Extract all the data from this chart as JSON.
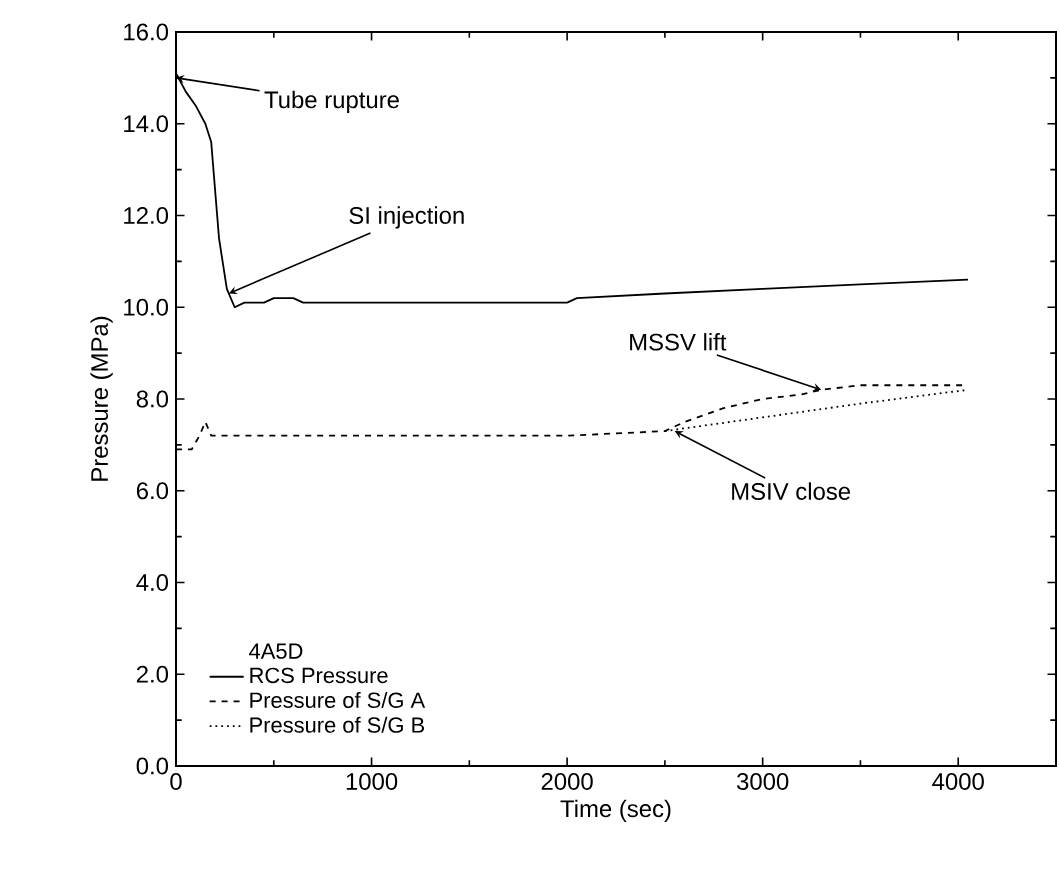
{
  "chart_data": {
    "type": "line",
    "xlabel": "Time (sec)",
    "ylabel": "Pressure (MPa)",
    "legend_title": "4A5D",
    "legend": "bottom left",
    "marker": "none",
    "xlim": [
      0,
      4500
    ],
    "xticks": [
      0,
      1000,
      2000,
      3000,
      4000
    ],
    "ylim": [
      0,
      16
    ],
    "yticks": [
      {
        "value": 0,
        "label": "0.0"
      },
      {
        "value": 2,
        "label": "2.0"
      },
      {
        "value": 4,
        "label": "4.0"
      },
      {
        "value": 6,
        "label": "6.0"
      },
      {
        "value": 8,
        "label": "8.0"
      },
      {
        "value": 10,
        "label": "10.0"
      },
      {
        "value": 12,
        "label": "12.0"
      },
      {
        "value": 14,
        "label": "14.0"
      },
      {
        "value": 16,
        "label": "16.0"
      }
    ],
    "series": [
      {
        "name": "RCS Pressure",
        "color": "#000000",
        "line_style": "solid",
        "x": [
          0,
          50,
          100,
          150,
          180,
          220,
          260,
          300,
          350,
          450,
          500,
          600,
          650,
          1000,
          1500,
          2000,
          2050,
          2500,
          3000,
          3500,
          4050
        ],
        "values": [
          15.1,
          14.7,
          14.4,
          14.0,
          13.6,
          11.5,
          10.4,
          10.0,
          10.1,
          10.1,
          10.2,
          10.2,
          10.1,
          10.1,
          10.1,
          10.1,
          10.2,
          10.3,
          10.4,
          10.5,
          10.6
        ]
      },
      {
        "name": "Pressure of S/G A",
        "color": "#000000",
        "line_style": "dashed",
        "x": [
          0,
          80,
          120,
          150,
          180,
          500,
          1000,
          1500,
          2000,
          2500,
          2600,
          2800,
          3000,
          3200,
          3300,
          3500,
          3800,
          4050
        ],
        "values": [
          6.9,
          6.9,
          7.2,
          7.5,
          7.2,
          7.2,
          7.2,
          7.2,
          7.2,
          7.3,
          7.5,
          7.8,
          8.0,
          8.1,
          8.2,
          8.3,
          8.3,
          8.3
        ]
      },
      {
        "name": "Pressure of S/G B",
        "color": "#000000",
        "line_style": "dotted",
        "x": [
          2500,
          3000,
          3500,
          4050
        ],
        "values": [
          7.3,
          7.6,
          7.9,
          8.2
        ]
      }
    ],
    "annotations": [
      {
        "text": "Tube rupture",
        "x": 0,
        "y": 15
      },
      {
        "text": "SI injection",
        "x": 270,
        "y": 10.3
      },
      {
        "text": "MSSV lift",
        "x": 3300,
        "y": 8.2
      },
      {
        "text": "MSIV close",
        "x": 2550,
        "y": 7.3
      }
    ]
  }
}
